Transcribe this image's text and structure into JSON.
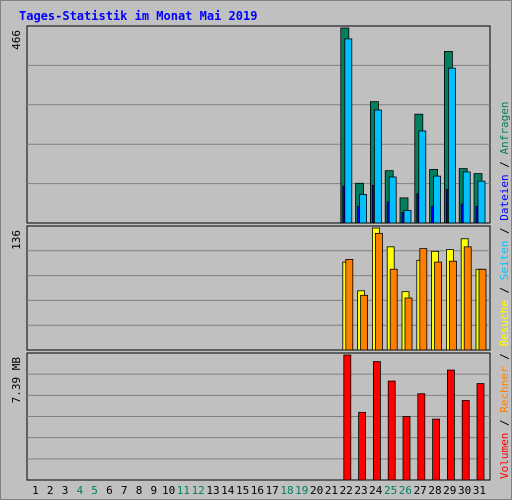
{
  "chart_data": {
    "type": "bar",
    "title": "Tages-Statistik im Monat Mai 2019",
    "categories": [
      "1",
      "2",
      "3",
      "4",
      "5",
      "6",
      "7",
      "8",
      "9",
      "10",
      "11",
      "12",
      "13",
      "14",
      "15",
      "16",
      "17",
      "18",
      "19",
      "20",
      "21",
      "22",
      "23",
      "24",
      "25",
      "26",
      "27",
      "28",
      "29",
      "30",
      "31"
    ],
    "weekend_days": [
      "4",
      "5",
      "11",
      "12",
      "18",
      "19",
      "25",
      "26"
    ],
    "panels": [
      {
        "id": "hits",
        "ymax_label": "466",
        "ylim": [
          0,
          466
        ],
        "series": [
          {
            "name": "Anfragen",
            "color": "#008060",
            "values": [
              0,
              0,
              0,
              0,
              0,
              0,
              0,
              0,
              0,
              0,
              0,
              0,
              0,
              0,
              0,
              0,
              0,
              0,
              0,
              0,
              0,
              466,
              95,
              290,
              125,
              60,
              260,
              128,
              410,
              130,
              118
            ]
          },
          {
            "name": "Dateien",
            "color": "#0000ff",
            "values": [
              0,
              0,
              0,
              0,
              0,
              0,
              0,
              0,
              0,
              0,
              0,
              0,
              0,
              0,
              0,
              0,
              0,
              0,
              0,
              0,
              0,
              88,
              40,
              90,
              50,
              25,
              70,
              40,
              80,
              45,
              40
            ]
          },
          {
            "name": "Seiten",
            "color": "#00c0ff",
            "values": [
              0,
              0,
              0,
              0,
              0,
              0,
              0,
              0,
              0,
              0,
              0,
              0,
              0,
              0,
              0,
              0,
              0,
              0,
              0,
              0,
              0,
              440,
              68,
              270,
              110,
              30,
              220,
              112,
              370,
              122,
              100
            ]
          }
        ]
      },
      {
        "id": "visits",
        "ymax_label": "136",
        "ylim": [
          0,
          136
        ],
        "series": [
          {
            "name": "Besuche",
            "color": "#ffff00",
            "values": [
              0,
              0,
              0,
              0,
              0,
              0,
              0,
              0,
              0,
              0,
              0,
              0,
              0,
              0,
              0,
              0,
              0,
              0,
              0,
              0,
              0,
              98,
              66,
              136,
              115,
              65,
              100,
              110,
              112,
              124,
              90
            ]
          },
          {
            "name": "Rechner",
            "color": "#ff8000",
            "values": [
              0,
              0,
              0,
              0,
              0,
              0,
              0,
              0,
              0,
              0,
              0,
              0,
              0,
              0,
              0,
              0,
              0,
              0,
              0,
              0,
              0,
              101,
              61,
              130,
              90,
              58,
              113,
              98,
              99,
              115,
              90
            ]
          }
        ]
      },
      {
        "id": "volume",
        "ymax_label": "7.39 MB",
        "ylim": [
          0,
          7.39
        ],
        "series": [
          {
            "name": "Volumen",
            "color": "#ff0000",
            "values": [
              0,
              0,
              0,
              0,
              0,
              0,
              0,
              0,
              0,
              0,
              0,
              0,
              0,
              0,
              0,
              0,
              0,
              0,
              0,
              0,
              0,
              7.39,
              4.0,
              7.0,
              5.85,
              3.75,
              5.1,
              3.6,
              6.5,
              4.7,
              5.7
            ]
          }
        ]
      }
    ],
    "right_legend": [
      {
        "label": "Anfragen",
        "color": "#008060"
      },
      {
        "label": "/",
        "color": "#000000"
      },
      {
        "label": "Dateien",
        "color": "#0000ff"
      },
      {
        "label": "/",
        "color": "#000000"
      },
      {
        "label": "Seiten",
        "color": "#00c0ff"
      },
      {
        "label": "/",
        "color": "#000000"
      },
      {
        "label": "Besuche",
        "color": "#ffff00"
      },
      {
        "label": "/",
        "color": "#000000"
      },
      {
        "label": "Rechner",
        "color": "#ff8000"
      },
      {
        "label": "/",
        "color": "#000000"
      },
      {
        "label": "Volumen",
        "color": "#ff0000"
      }
    ],
    "grid": true
  },
  "colors": {
    "background": "#c0c0c0",
    "title": "#0000ff",
    "weekday_label": "#000000",
    "weekend_label": "#008060"
  }
}
